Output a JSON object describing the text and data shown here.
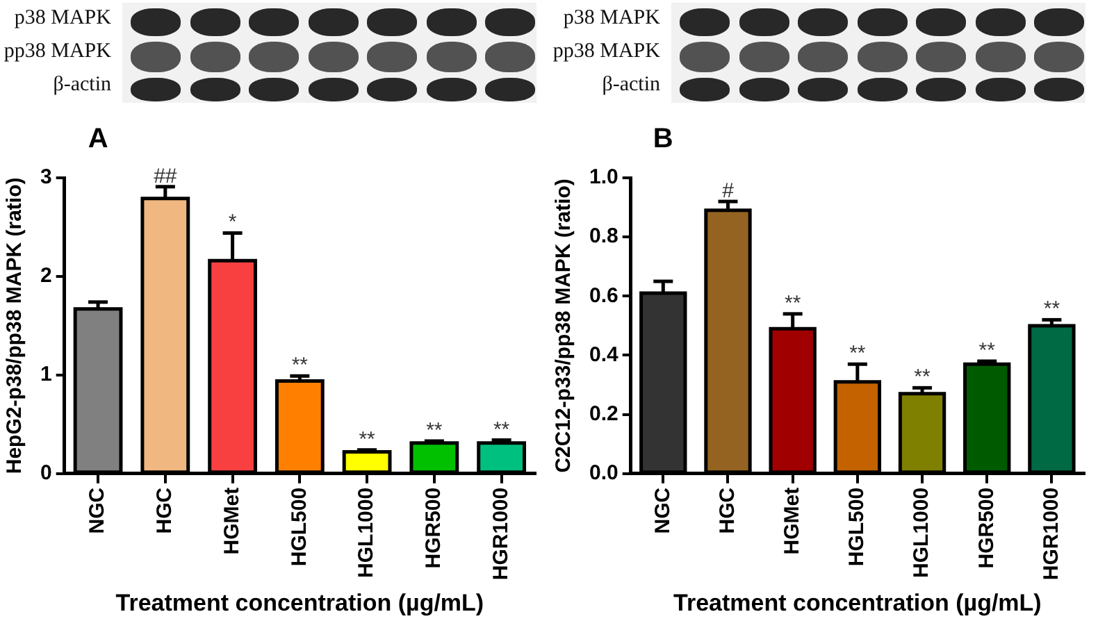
{
  "chart_data": [
    {
      "type": "bar",
      "title": "A",
      "xlabel": "Treatment concentration (µg/mL)",
      "ylabel": "HepG2-p38/pp38 MAPK (ratio)",
      "categories": [
        "NGC",
        "HGC",
        "HGMet",
        "HGL500",
        "HGL1000",
        "HGR500",
        "HGR1000"
      ],
      "values": [
        1.67,
        2.79,
        2.16,
        0.94,
        0.22,
        0.31,
        0.31
      ],
      "colors": [
        "#808080",
        "#f0b880",
        "#f84040",
        "#ff8000",
        "#ffff00",
        "#00c000",
        "#00c080"
      ],
      "errors": [
        [
          1.67,
          1.74
        ],
        [
          2.79,
          2.91
        ],
        [
          2.16,
          2.44
        ],
        [
          0.94,
          0.99
        ],
        [
          0.22,
          0.24
        ],
        [
          0.31,
          0.33
        ],
        [
          0.31,
          0.34
        ]
      ],
      "value_labels": [
        null,
        "##",
        "*",
        "**",
        "**",
        "**",
        "**"
      ],
      "ylim": [
        0,
        3
      ],
      "yticks": [
        0,
        1,
        2,
        3
      ],
      "annotations": [
        "p38 MAPK",
        "pp38 MAPK",
        "β-actin"
      ]
    },
    {
      "type": "bar",
      "title": "B",
      "xlabel": "Treatment concentration (µg/mL)",
      "ylabel": "C2C12-p33/pp38 MAPK (ratio)",
      "categories": [
        "NGC",
        "HGC",
        "HGMet",
        "HGL500",
        "HGL1000",
        "HGR500",
        "HGR1000"
      ],
      "values": [
        0.61,
        0.89,
        0.49,
        0.31,
        0.27,
        0.37,
        0.5
      ],
      "colors": [
        "#333333",
        "#956321",
        "#a00000",
        "#c46200",
        "#808000",
        "#005a00",
        "#006a45"
      ],
      "errors": [
        [
          0.61,
          0.65
        ],
        [
          0.89,
          0.92
        ],
        [
          0.49,
          0.54
        ],
        [
          0.31,
          0.37
        ],
        [
          0.27,
          0.29
        ],
        [
          0.37,
          0.38
        ],
        [
          0.5,
          0.52
        ]
      ],
      "value_labels": [
        null,
        "#",
        "**",
        "**",
        "**",
        "**",
        "**"
      ],
      "ylim": [
        0,
        1
      ],
      "yticks": [
        {
          "value": 0,
          "label": "0.0"
        },
        0.2,
        0.4,
        0.6,
        0.8,
        {
          "value": 1,
          "label": "1.0"
        }
      ],
      "annotations": [
        "p38 MAPK",
        "pp38 MAPK",
        "β-actin"
      ]
    }
  ]
}
